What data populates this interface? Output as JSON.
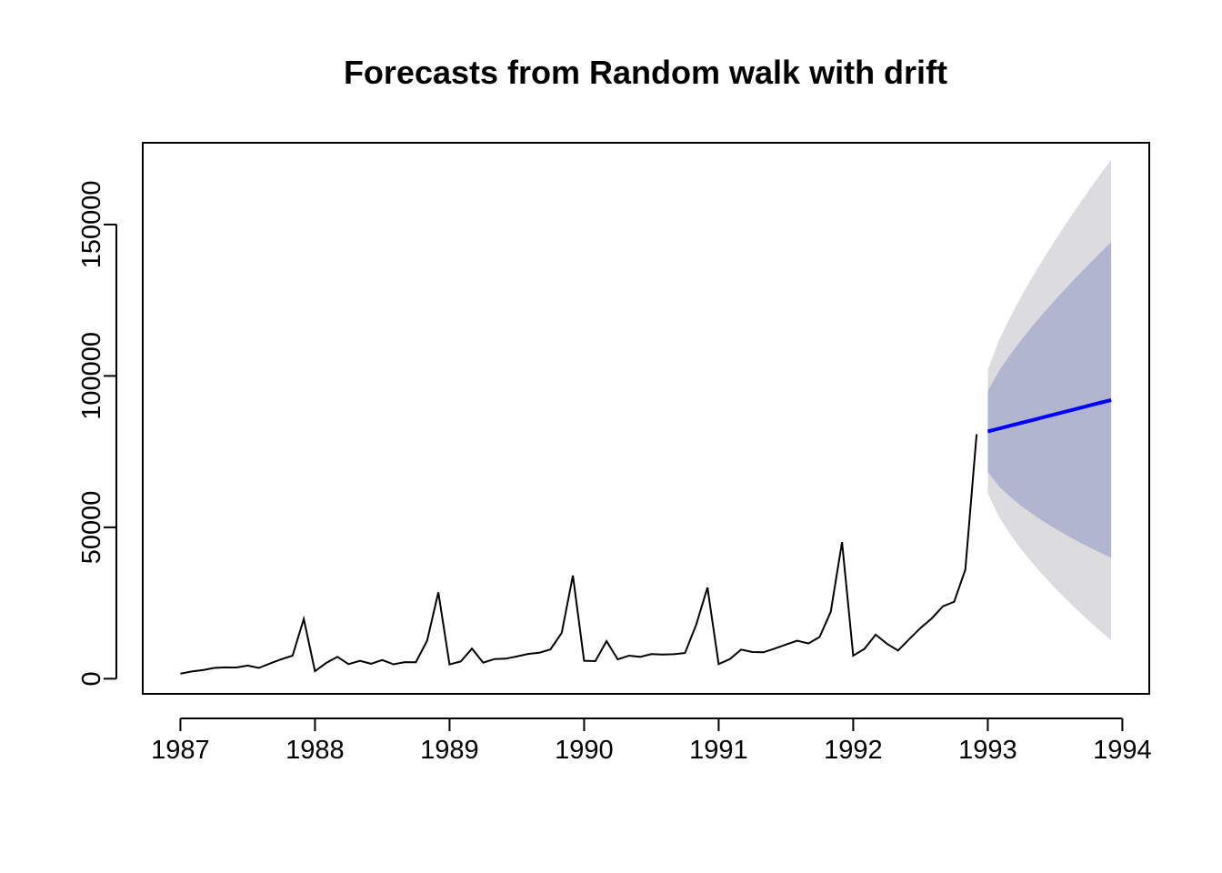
{
  "chart_data": {
    "type": "line",
    "title": "Forecasts from Random walk with drift",
    "xlabel": "",
    "ylabel": "",
    "xlim": [
      1986.72,
      1994.2
    ],
    "ylim": [
      -5000,
      177000
    ],
    "x_ticks": [
      1987,
      1988,
      1989,
      1990,
      1991,
      1992,
      1993,
      1994
    ],
    "x_tick_labels": [
      "1987",
      "1988",
      "1989",
      "1990",
      "1991",
      "1992",
      "1993",
      "1994"
    ],
    "y_ticks": [
      0,
      50000,
      100000,
      150000
    ],
    "y_tick_labels": [
      "0",
      "50000",
      "100000",
      "150000"
    ],
    "grid": false,
    "legend": "none",
    "colors": {
      "history": "#000000",
      "forecast": "#0000ff",
      "band80": "#b1b5cf",
      "band95": "#dbdbe0"
    },
    "history": {
      "start": 1987,
      "frequency": 12,
      "values": [
        1665,
        2398,
        2841,
        3547,
        3753,
        3715,
        4350,
        3566,
        5022,
        6423,
        7600,
        19756,
        2500,
        5198,
        7225,
        4806,
        5900,
        4951,
        6179,
        4752,
        5496,
        5463,
        12600,
        28541,
        4717,
        5702,
        9957,
        5304,
        6492,
        6631,
        7349,
        8176,
        8574,
        9690,
        15151,
        34061,
        5921,
        5814,
        12421,
        6369,
        7609,
        7224,
        8121,
        7979,
        8093,
        8476,
        17914,
        30114,
        4826,
        6470,
        9638,
        8821,
        8722,
        9949,
        11273,
        12582,
        11638,
        13758,
        22119,
        45129,
        7615,
        9850,
        14558,
        11587,
        9332,
        13082,
        16733,
        19888,
        23933,
        25391,
        36024,
        80721
      ]
    },
    "forecast": {
      "start": 1993,
      "frequency": 12,
      "mean": [
        81665,
        82609,
        83553,
        84497,
        85441,
        86385,
        87329,
        88273,
        89217,
        90161,
        91105,
        92049
      ],
      "lo80": [
        68366,
        63562,
        60040,
        57028,
        54350,
        51882,
        49588,
        47440,
        45418,
        43504,
        41686,
        39952
      ],
      "hi80": [
        94964,
        101656,
        107066,
        111966,
        116532,
        120888,
        125070,
        129106,
        133016,
        136818,
        140524,
        144146
      ],
      "lo95": [
        61326,
        53480,
        47674,
        42640,
        38088,
        33870,
        29914,
        26170,
        22600,
        19178,
        15886,
        12706
      ],
      "hi95": [
        102004,
        111738,
        119432,
        126354,
        132794,
        138900,
        144744,
        150376,
        155834,
        161144,
        166324,
        171392
      ]
    }
  }
}
